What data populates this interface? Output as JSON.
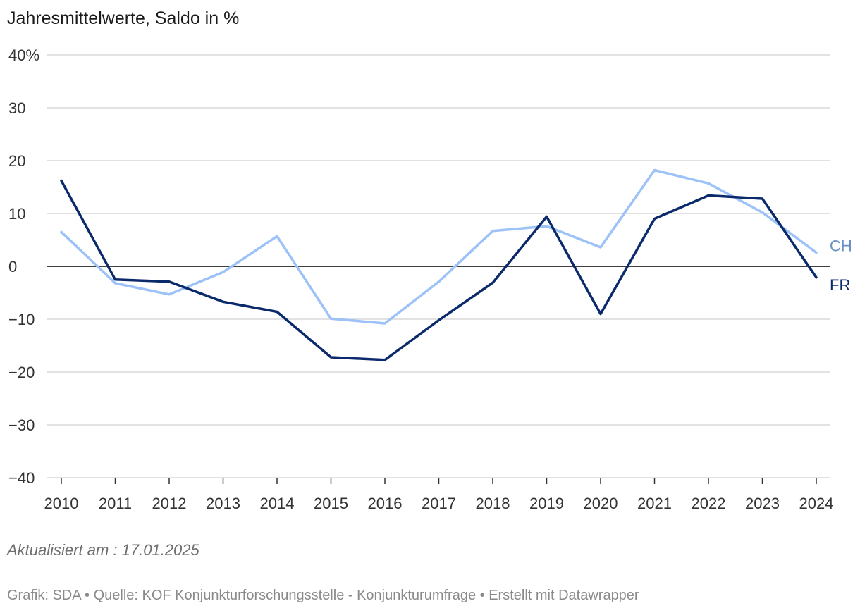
{
  "chart_data": {
    "type": "line",
    "title": "Jahresmittelwerte, Saldo in %",
    "x": [
      "2010",
      "2011",
      "2012",
      "2013",
      "2014",
      "2015",
      "2016",
      "2017",
      "2018",
      "2019",
      "2020",
      "2021",
      "2022",
      "2023",
      "2024"
    ],
    "y_ticks": [
      {
        "value": 40,
        "label": "40%"
      },
      {
        "value": 30,
        "label": "30"
      },
      {
        "value": 20,
        "label": "20"
      },
      {
        "value": 10,
        "label": "10"
      },
      {
        "value": 0,
        "label": "0"
      },
      {
        "value": -10,
        "label": "−10"
      },
      {
        "value": -20,
        "label": "−20"
      },
      {
        "value": -30,
        "label": "−30"
      },
      {
        "value": -40,
        "label": "−40"
      }
    ],
    "ylim": [
      -40,
      40
    ],
    "grid": true,
    "series": [
      {
        "name": "CH",
        "color": "#9cc2f7",
        "label_color": "#6a8fc7",
        "values": [
          6.5,
          -3.2,
          -5.3,
          -1.1,
          5.7,
          -9.9,
          -10.8,
          -2.9,
          6.7,
          7.6,
          3.6,
          18.2,
          15.7,
          10.2,
          2.6
        ]
      },
      {
        "name": "FR",
        "color": "#0b2a6b",
        "label_color": "#0b2a6b",
        "values": [
          16.2,
          -2.5,
          -2.9,
          -6.7,
          -8.6,
          -17.2,
          -17.7,
          -10.2,
          -3.1,
          9.4,
          -9.0,
          9.0,
          13.4,
          12.8,
          -2.1
        ]
      }
    ]
  },
  "note": "Aktualisiert am : 17.01.2025",
  "footer": "Grafik: SDA • Quelle: KOF Konjunkturforschungsstelle - Konjunkturumfrage • Erstellt mit Datawrapper"
}
